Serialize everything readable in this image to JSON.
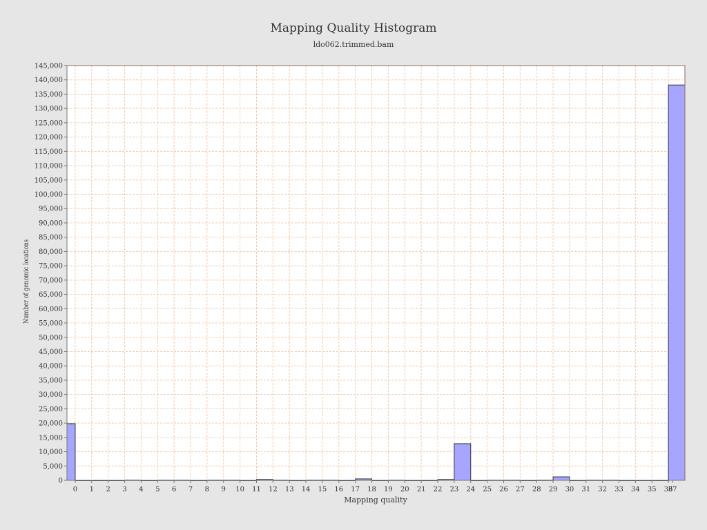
{
  "chart_data": {
    "type": "bar",
    "title": "Mapping Quality Histogram",
    "subtitle": "ldo062.trimmed.bam",
    "xlabel": "Mapping quality",
    "ylabel": "Number of genomic locations",
    "ylim": [
      0,
      145000
    ],
    "ystep": 5000,
    "grid": true,
    "bar_color": "#a6a6ff",
    "bar_edge": "#333333",
    "grid_color": "#f5c9a8",
    "categories": [
      "0",
      "1",
      "2",
      "3",
      "4",
      "5",
      "6",
      "7",
      "8",
      "9",
      "10",
      "11",
      "12",
      "13",
      "14",
      "15",
      "16",
      "17",
      "18",
      "19",
      "20",
      "21",
      "22",
      "23",
      "24",
      "25",
      "26",
      "27",
      "28",
      "29",
      "30",
      "31",
      "32",
      "33",
      "34",
      "35",
      "36",
      "37"
    ],
    "values": [
      19800,
      0,
      0,
      0,
      80,
      0,
      60,
      60,
      0,
      60,
      60,
      0,
      300,
      60,
      0,
      60,
      60,
      0,
      500,
      0,
      60,
      0,
      0,
      300,
      12800,
      0,
      60,
      60,
      0,
      60,
      1200,
      0,
      60,
      60,
      0,
      0,
      0,
      138200
    ]
  }
}
